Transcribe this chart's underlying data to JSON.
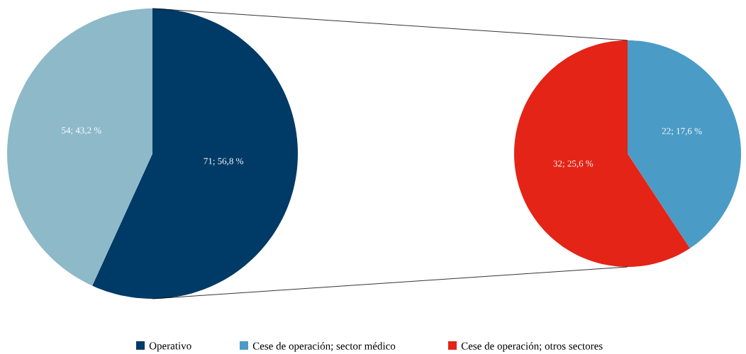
{
  "chart_data": [
    {
      "type": "pie",
      "categories": [
        "Operativo",
        null
      ],
      "values": [
        71,
        54
      ],
      "colors": [
        "#003a66",
        "#8db9c9"
      ],
      "value_labels": [
        "71; 56,8 %",
        "54; 43,2 %"
      ],
      "legend": "bottom"
    },
    {
      "type": "pie",
      "categories": [
        "Cese de operación; sector médico",
        "Cese de operación; otros sectores"
      ],
      "values": [
        22,
        32
      ],
      "colors": [
        "#4a9bc6",
        "#e32416"
      ],
      "value_labels": [
        "22; 17,6 %",
        "32; 25,6 %"
      ],
      "legend": "bottom"
    }
  ]
}
